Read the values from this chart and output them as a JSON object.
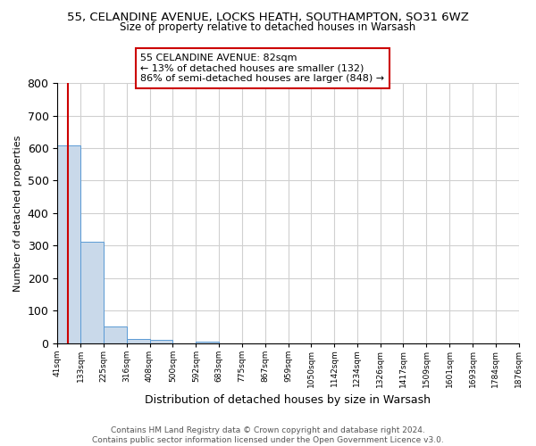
{
  "title": "55, CELANDINE AVENUE, LOCKS HEATH, SOUTHAMPTON, SO31 6WZ",
  "subtitle": "Size of property relative to detached houses in Warsash",
  "xlabel": "Distribution of detached houses by size in Warsash",
  "ylabel": "Number of detached properties",
  "footer_line1": "Contains HM Land Registry data © Crown copyright and database right 2024.",
  "footer_line2": "Contains public sector information licensed under the Open Government Licence v3.0.",
  "annotation_line1": "55 CELANDINE AVENUE: 82sqm",
  "annotation_line2": "← 13% of detached houses are smaller (132)",
  "annotation_line3": "86% of semi-detached houses are larger (848) →",
  "property_size_sqm": 82,
  "bar_color": "#c9d9ea",
  "bar_edge_color": "#5b9bd5",
  "vline_color": "#cc0000",
  "annotation_box_edge": "#cc0000",
  "annotation_box_face": "#ffffff",
  "bins": [
    41,
    133,
    225,
    316,
    408,
    500,
    592,
    683,
    775,
    867,
    959,
    1050,
    1142,
    1234,
    1326,
    1417,
    1509,
    1601,
    1693,
    1784,
    1876
  ],
  "counts": [
    609,
    311,
    50,
    12,
    11,
    0,
    5,
    0,
    0,
    0,
    0,
    0,
    0,
    0,
    0,
    0,
    0,
    0,
    0,
    0
  ],
  "ylim": [
    0,
    800
  ],
  "yticks": [
    0,
    100,
    200,
    300,
    400,
    500,
    600,
    700,
    800
  ],
  "grid_color": "#d0d0d0",
  "background_color": "#ffffff",
  "tick_labels": [
    "41sqm",
    "133sqm",
    "225sqm",
    "316sqm",
    "408sqm",
    "500sqm",
    "592sqm",
    "683sqm",
    "775sqm",
    "867sqm",
    "959sqm",
    "1050sqm",
    "1142sqm",
    "1234sqm",
    "1326sqm",
    "1417sqm",
    "1509sqm",
    "1601sqm",
    "1693sqm",
    "1784sqm",
    "1876sqm"
  ]
}
